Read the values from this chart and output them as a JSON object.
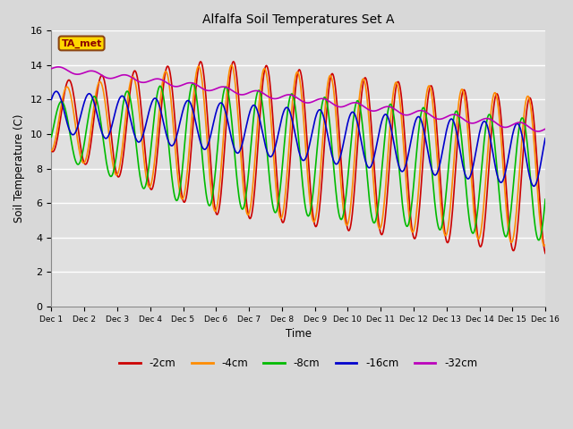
{
  "title": "Alfalfa Soil Temperatures Set A",
  "xlabel": "Time",
  "ylabel": "Soil Temperature (C)",
  "ylim": [
    0,
    16
  ],
  "annotation_text": "TA_met",
  "annotation_color": "#8B0000",
  "annotation_bg": "#FFD700",
  "fig_bg": "#D8D8D8",
  "plot_bg": "#E0E0E0",
  "line_colors": {
    "-2cm": "#CC0000",
    "-4cm": "#FF8C00",
    "-8cm": "#00BB00",
    "-16cm": "#0000CC",
    "-32cm": "#BB00BB"
  },
  "xtick_labels": [
    "Dec 1",
    "Dec 2",
    "Dec 3",
    "Dec 4",
    "Dec 5",
    "Dec 6",
    "Dec 7",
    "Dec 8",
    "Dec 9",
    "Dec 10",
    "Dec 11",
    "Dec 12",
    "Dec 13",
    "Dec 14",
    "Dec 15",
    "Dec 16"
  ],
  "ytick_positions": [
    0,
    2,
    4,
    6,
    8,
    10,
    12,
    14,
    16
  ],
  "n_points": 720
}
